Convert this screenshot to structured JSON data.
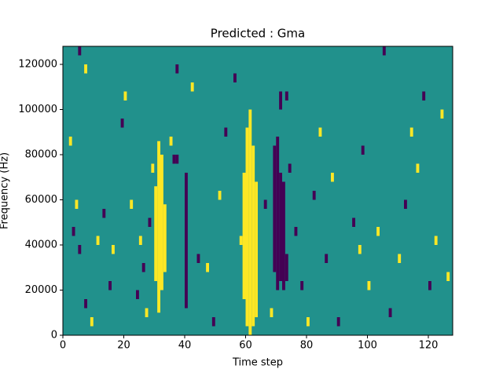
{
  "chart_data": {
    "type": "heatmap",
    "title": "Predicted : Gma",
    "xlabel": "Time step",
    "ylabel": "Frequency (Hz)",
    "xlim": [
      0,
      128
    ],
    "ylim": [
      0,
      128000
    ],
    "xticks": [
      0,
      20,
      40,
      60,
      80,
      100,
      120
    ],
    "yticks": [
      0,
      20000,
      40000,
      60000,
      80000,
      100000,
      120000
    ],
    "colors": {
      "-1": "#440154",
      "0": "#21918c",
      "1": "#fde725"
    },
    "cells": [
      {
        "t": 31,
        "f0": 10000,
        "f1": 86000,
        "v": 1
      },
      {
        "t": 32,
        "f0": 20000,
        "f1": 80000,
        "v": 1
      },
      {
        "t": 30,
        "f0": 24000,
        "f1": 66000,
        "v": 1
      },
      {
        "t": 33,
        "f0": 28000,
        "f1": 58000,
        "v": 1
      },
      {
        "t": 59,
        "f0": 16000,
        "f1": 72000,
        "v": 1
      },
      {
        "t": 60,
        "f0": 4000,
        "f1": 92000,
        "v": 1
      },
      {
        "t": 61,
        "f0": 0,
        "f1": 100000,
        "v": 1
      },
      {
        "t": 62,
        "f0": 4000,
        "f1": 84000,
        "v": 1
      },
      {
        "t": 63,
        "f0": 8000,
        "f1": 68000,
        "v": 1
      },
      {
        "t": 69,
        "f0": 28000,
        "f1": 84000,
        "v": -1
      },
      {
        "t": 70,
        "f0": 20000,
        "f1": 88000,
        "v": -1
      },
      {
        "t": 71,
        "f0": 24000,
        "f1": 72000,
        "v": -1
      },
      {
        "t": 72,
        "f0": 20000,
        "f1": 68000,
        "v": -1
      },
      {
        "t": 73,
        "f0": 24000,
        "f1": 36000,
        "v": -1
      },
      {
        "t": 71,
        "f0": 100000,
        "f1": 108000,
        "v": -1
      },
      {
        "t": 40,
        "f0": 12000,
        "f1": 72000,
        "v": -1
      },
      {
        "t": 36,
        "f0": 76000,
        "f1": 80000,
        "v": -1
      },
      {
        "t": 37,
        "f0": 76000,
        "f1": 80000,
        "v": -1
      },
      {
        "t": 5,
        "f0": 124000,
        "f1": 128000,
        "v": -1
      },
      {
        "t": 7,
        "f0": 116000,
        "f1": 120000,
        "v": 1
      },
      {
        "t": 2,
        "f0": 84000,
        "f1": 88000,
        "v": 1
      },
      {
        "t": 4,
        "f0": 56000,
        "f1": 60000,
        "v": 1
      },
      {
        "t": 3,
        "f0": 44000,
        "f1": 48000,
        "v": -1
      },
      {
        "t": 5,
        "f0": 36000,
        "f1": 40000,
        "v": -1
      },
      {
        "t": 7,
        "f0": 12000,
        "f1": 16000,
        "v": -1
      },
      {
        "t": 9,
        "f0": 4000,
        "f1": 8000,
        "v": 1
      },
      {
        "t": 11,
        "f0": 40000,
        "f1": 44000,
        "v": 1
      },
      {
        "t": 13,
        "f0": 52000,
        "f1": 56000,
        "v": -1
      },
      {
        "t": 15,
        "f0": 20000,
        "f1": 24000,
        "v": -1
      },
      {
        "t": 16,
        "f0": 36000,
        "f1": 40000,
        "v": 1
      },
      {
        "t": 20,
        "f0": 104000,
        "f1": 108000,
        "v": 1
      },
      {
        "t": 19,
        "f0": 92000,
        "f1": 96000,
        "v": -1
      },
      {
        "t": 22,
        "f0": 56000,
        "f1": 60000,
        "v": 1
      },
      {
        "t": 24,
        "f0": 16000,
        "f1": 20000,
        "v": -1
      },
      {
        "t": 25,
        "f0": 40000,
        "f1": 44000,
        "v": 1
      },
      {
        "t": 26,
        "f0": 28000,
        "f1": 32000,
        "v": -1
      },
      {
        "t": 27,
        "f0": 8000,
        "f1": 12000,
        "v": 1
      },
      {
        "t": 28,
        "f0": 48000,
        "f1": 52000,
        "v": -1
      },
      {
        "t": 29,
        "f0": 72000,
        "f1": 76000,
        "v": 1
      },
      {
        "t": 35,
        "f0": 84000,
        "f1": 88000,
        "v": 1
      },
      {
        "t": 37,
        "f0": 116000,
        "f1": 120000,
        "v": -1
      },
      {
        "t": 42,
        "f0": 108000,
        "f1": 112000,
        "v": 1
      },
      {
        "t": 44,
        "f0": 32000,
        "f1": 36000,
        "v": -1
      },
      {
        "t": 47,
        "f0": 28000,
        "f1": 32000,
        "v": 1
      },
      {
        "t": 49,
        "f0": 4000,
        "f1": 8000,
        "v": -1
      },
      {
        "t": 51,
        "f0": 60000,
        "f1": 64000,
        "v": 1
      },
      {
        "t": 53,
        "f0": 88000,
        "f1": 92000,
        "v": -1
      },
      {
        "t": 56,
        "f0": 112000,
        "f1": 116000,
        "v": -1
      },
      {
        "t": 58,
        "f0": 40000,
        "f1": 44000,
        "v": 1
      },
      {
        "t": 66,
        "f0": 56000,
        "f1": 60000,
        "v": -1
      },
      {
        "t": 68,
        "f0": 8000,
        "f1": 12000,
        "v": 1
      },
      {
        "t": 73,
        "f0": 104000,
        "f1": 108000,
        "v": -1
      },
      {
        "t": 74,
        "f0": 72000,
        "f1": 76000,
        "v": -1
      },
      {
        "t": 76,
        "f0": 44000,
        "f1": 48000,
        "v": -1
      },
      {
        "t": 78,
        "f0": 20000,
        "f1": 24000,
        "v": -1
      },
      {
        "t": 80,
        "f0": 4000,
        "f1": 8000,
        "v": 1
      },
      {
        "t": 82,
        "f0": 60000,
        "f1": 64000,
        "v": -1
      },
      {
        "t": 84,
        "f0": 88000,
        "f1": 92000,
        "v": 1
      },
      {
        "t": 86,
        "f0": 32000,
        "f1": 36000,
        "v": -1
      },
      {
        "t": 88,
        "f0": 68000,
        "f1": 72000,
        "v": 1
      },
      {
        "t": 90,
        "f0": 4000,
        "f1": 8000,
        "v": -1
      },
      {
        "t": 95,
        "f0": 48000,
        "f1": 52000,
        "v": -1
      },
      {
        "t": 97,
        "f0": 36000,
        "f1": 40000,
        "v": 1
      },
      {
        "t": 98,
        "f0": 80000,
        "f1": 84000,
        "v": -1
      },
      {
        "t": 100,
        "f0": 20000,
        "f1": 24000,
        "v": 1
      },
      {
        "t": 103,
        "f0": 44000,
        "f1": 48000,
        "v": 1
      },
      {
        "t": 105,
        "f0": 124000,
        "f1": 128000,
        "v": -1
      },
      {
        "t": 107,
        "f0": 8000,
        "f1": 12000,
        "v": -1
      },
      {
        "t": 110,
        "f0": 32000,
        "f1": 36000,
        "v": 1
      },
      {
        "t": 112,
        "f0": 56000,
        "f1": 60000,
        "v": -1
      },
      {
        "t": 114,
        "f0": 88000,
        "f1": 92000,
        "v": 1
      },
      {
        "t": 116,
        "f0": 72000,
        "f1": 76000,
        "v": 1
      },
      {
        "t": 118,
        "f0": 104000,
        "f1": 108000,
        "v": -1
      },
      {
        "t": 120,
        "f0": 20000,
        "f1": 24000,
        "v": -1
      },
      {
        "t": 122,
        "f0": 40000,
        "f1": 44000,
        "v": 1
      },
      {
        "t": 124,
        "f0": 96000,
        "f1": 100000,
        "v": 1
      },
      {
        "t": 126,
        "f0": 24000,
        "f1": 28000,
        "v": 1
      }
    ]
  }
}
